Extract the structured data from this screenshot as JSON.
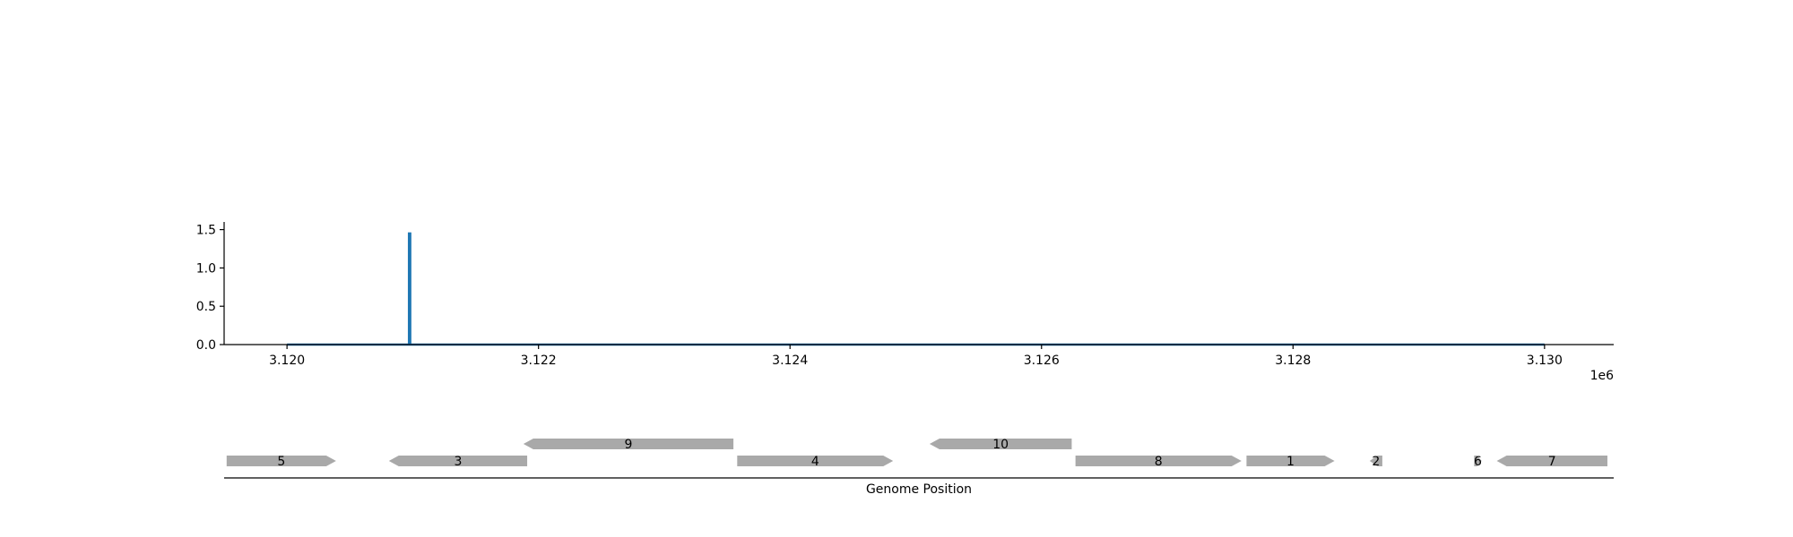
{
  "chart_data": [
    {
      "type": "line",
      "title": "",
      "xlabel": "",
      "ylabel": "",
      "x_offset_label": "1e6",
      "xlim": [
        3.1195,
        3.13055
      ],
      "ylim": [
        0,
        1.6
      ],
      "x_ticks": [
        3.12,
        3.122,
        3.124,
        3.126,
        3.128,
        3.13
      ],
      "x_tick_labels": [
        "3.120",
        "3.122",
        "3.124",
        "3.126",
        "3.128",
        "3.130"
      ],
      "y_ticks": [
        0.0,
        0.5,
        1.0,
        1.5
      ],
      "y_tick_labels": [
        "0.0",
        "0.5",
        "1.0",
        "1.5"
      ],
      "grid": false,
      "series": [
        {
          "color": "#1f77b4",
          "x": [
            3.12,
            3.12097,
            3.12097,
            3.12098,
            3.12098,
            3.13
          ],
          "y": [
            0,
            0,
            1.45,
            1.45,
            0,
            0
          ]
        }
      ]
    },
    {
      "type": "gene-track",
      "xlabel": "Genome Position",
      "xlim": [
        3.1195,
        3.13055
      ],
      "color": "#a9a9a9",
      "genes": [
        {
          "label": "5",
          "start": 3.11952,
          "end": 3.12039,
          "strand": "+",
          "row": 0
        },
        {
          "label": "3",
          "start": 3.12081,
          "end": 3.12191,
          "strand": "-",
          "row": 0
        },
        {
          "label": "9",
          "start": 3.12188,
          "end": 3.12355,
          "strand": "-",
          "row": 1
        },
        {
          "label": "4",
          "start": 3.12358,
          "end": 3.12482,
          "strand": "+",
          "row": 0
        },
        {
          "label": "10",
          "start": 3.12511,
          "end": 3.12624,
          "strand": "-",
          "row": 1
        },
        {
          "label": "8",
          "start": 3.12627,
          "end": 3.12759,
          "strand": "+",
          "row": 0
        },
        {
          "label": "1",
          "start": 3.12763,
          "end": 3.12833,
          "strand": "+",
          "row": 0
        },
        {
          "label": "2",
          "start": 3.12861,
          "end": 3.12871,
          "strand": "-",
          "row": 0
        },
        {
          "label": "6",
          "start": 3.12944,
          "end": 3.1295,
          "strand": "+",
          "row": 0
        },
        {
          "label": "7",
          "start": 3.12962,
          "end": 3.1305,
          "strand": "-",
          "row": 0
        }
      ]
    }
  ]
}
